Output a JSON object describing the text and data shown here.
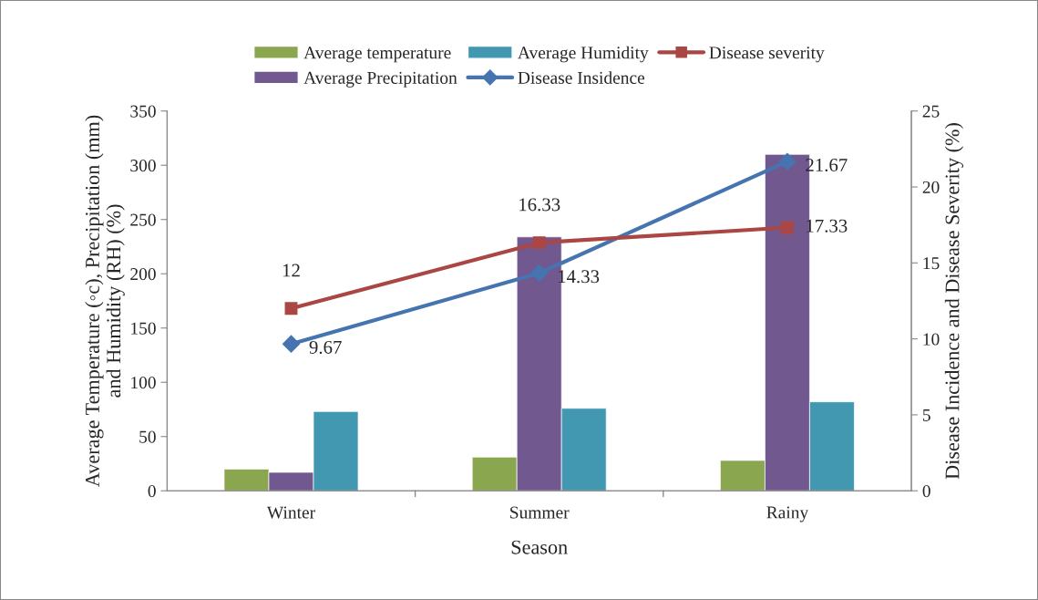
{
  "chart_data": {
    "type": "bar",
    "categories": [
      "Winter",
      "Summer",
      "Rainy"
    ],
    "xlabel": "Season",
    "ylabel": "Average Temperature (◦c), Precipitation (mm)\nand Humidity (RH) (%)",
    "y2label": "Disease Incidence and Disease Severity (%)",
    "series": [
      {
        "name": "Average temperature",
        "color": "#8aa64e",
        "values": [
          20,
          31,
          28
        ]
      },
      {
        "name": "Average Precipitation",
        "color": "#71588f",
        "values": [
          17,
          234,
          310
        ]
      },
      {
        "name": "Average Humidity",
        "color": "#4298b0",
        "values": [
          73,
          76,
          82
        ]
      },
      {
        "name": "Disease Insidence",
        "type": "line",
        "axis": "y2",
        "color": "#4674b0",
        "marker": "diamond",
        "values": [
          9.67,
          14.33,
          21.67
        ],
        "value_labels": [
          "9.67",
          "14.33",
          "21.67"
        ]
      },
      {
        "name": "Disease severity",
        "type": "line",
        "axis": "y2",
        "color": "#aa4643",
        "marker": "square",
        "values": [
          12,
          16.33,
          17.33
        ],
        "value_labels": [
          "12",
          "16.33",
          "17.33"
        ]
      }
    ],
    "ylim": [
      0,
      350
    ],
    "yticks": [
      0,
      50,
      100,
      150,
      200,
      250,
      300,
      350
    ],
    "y2lim": [
      0,
      25
    ],
    "y2ticks": [
      0,
      5,
      10,
      15,
      20,
      25
    ],
    "grid": false,
    "legend": "top"
  }
}
